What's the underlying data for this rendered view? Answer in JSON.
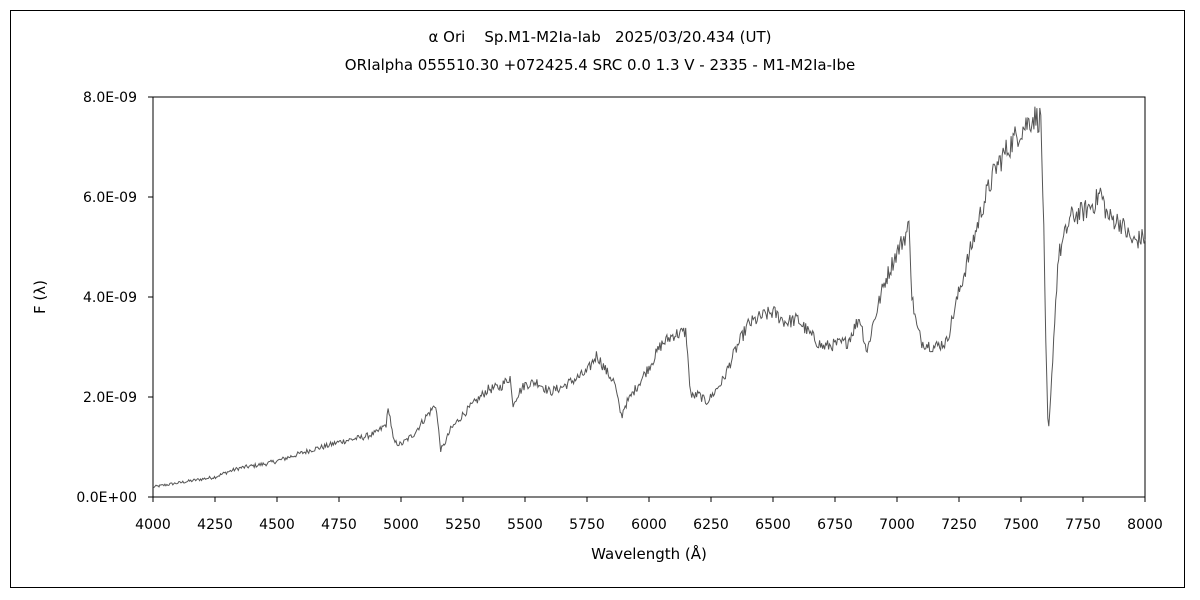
{
  "chart_data": {
    "type": "line",
    "title": "α Ori    Sp.M1-M2Ia-Iab   2025/03/20.434 (UT)",
    "subtitle": "ORIalpha 055510.30 +072425.4 SRC 0.0 1.3 V - 2335 - M1-M2Ia-Ibe",
    "xlabel": "Wavelength (Å)",
    "ylabel": "F (λ)",
    "xlim": [
      4000,
      8000
    ],
    "ylim": [
      0,
      8e-09
    ],
    "grid": false,
    "x_ticks": [
      "4000",
      "4250",
      "4500",
      "4750",
      "5000",
      "5250",
      "5500",
      "5750",
      "6000",
      "6250",
      "6500",
      "6750",
      "7000",
      "7250",
      "7500",
      "7750",
      "8000"
    ],
    "y_ticks": [
      "0.0E+00",
      "2.0E-09",
      "4.0E-09",
      "6.0E-09",
      "8.0E-09"
    ],
    "line_color": "#555555",
    "series": [
      {
        "x": [
          4000,
          4050,
          4100,
          4150,
          4200,
          4250,
          4300,
          4350,
          4400,
          4450,
          4500,
          4550,
          4600,
          4650,
          4700,
          4750,
          4800,
          4850,
          4900,
          4940,
          4950,
          4970,
          5000,
          5050,
          5100,
          5140,
          5150,
          5160,
          5170,
          5200,
          5250,
          5300,
          5350,
          5400,
          5440,
          5450,
          5470,
          5500,
          5550,
          5600,
          5650,
          5700,
          5750,
          5790,
          5800,
          5830,
          5860,
          5880,
          5890,
          5900,
          5950,
          6000,
          6050,
          6100,
          6150,
          6160,
          6170,
          6200,
          6230,
          6250,
          6300,
          6350,
          6400,
          6450,
          6500,
          6550,
          6600,
          6650,
          6700,
          6750,
          6800,
          6850,
          6870,
          6880,
          6900,
          6950,
          7000,
          7040,
          7050,
          7060,
          7080,
          7100,
          7150,
          7200,
          7250,
          7300,
          7350,
          7400,
          7450,
          7500,
          7550,
          7580,
          7590,
          7600,
          7610,
          7620,
          7630,
          7650,
          7700,
          7750,
          7800,
          7820,
          7850,
          7900,
          7950,
          8000
        ],
        "y": [
          2e-10,
          2.4e-10,
          2.8e-10,
          3.2e-10,
          3.6e-10,
          4e-10,
          5e-10,
          5.8e-10,
          6.2e-10,
          6.6e-10,
          7.2e-10,
          8e-10,
          8.8e-10,
          9.6e-10,
          1.02e-09,
          1.1e-09,
          1.15e-09,
          1.2e-09,
          1.28e-09,
          1.45e-09,
          1.8e-09,
          1.1e-09,
          1.05e-09,
          1.25e-09,
          1.6e-09,
          1.85e-09,
          1.4e-09,
          9.5e-10,
          1e-09,
          1.35e-09,
          1.65e-09,
          1.9e-09,
          2.15e-09,
          2.2e-09,
          2.4e-09,
          1.85e-09,
          2.05e-09,
          2.25e-09,
          2.3e-09,
          2.1e-09,
          2.2e-09,
          2.35e-09,
          2.5e-09,
          2.85e-09,
          2.75e-09,
          2.5e-09,
          2.3e-09,
          1.8e-09,
          1.6e-09,
          1.8e-09,
          2.2e-09,
          2.6e-09,
          3.05e-09,
          3.25e-09,
          3.3e-09,
          2.5e-09,
          2e-09,
          2.05e-09,
          1.9e-09,
          2e-09,
          2.35e-09,
          2.95e-09,
          3.45e-09,
          3.6e-09,
          3.7e-09,
          3.5e-09,
          3.55e-09,
          3.25e-09,
          3e-09,
          3.05e-09,
          3.1e-09,
          3.6e-09,
          3.1e-09,
          2.9e-09,
          3.4e-09,
          4.3e-09,
          4.9e-09,
          5.3e-09,
          5.45e-09,
          4e-09,
          3.4e-09,
          3.1e-09,
          3e-09,
          3.1e-09,
          4.1e-09,
          5e-09,
          5.9e-09,
          6.6e-09,
          7e-09,
          7.35e-09,
          7.6e-09,
          7.55e-09,
          5.8e-09,
          3e-09,
          1.2e-09,
          2e-09,
          3e-09,
          4.8e-09,
          5.6e-09,
          5.7e-09,
          5.9e-09,
          6.1e-09,
          5.6e-09,
          5.5e-09,
          5.1e-09,
          5.2e-09
        ]
      }
    ]
  }
}
